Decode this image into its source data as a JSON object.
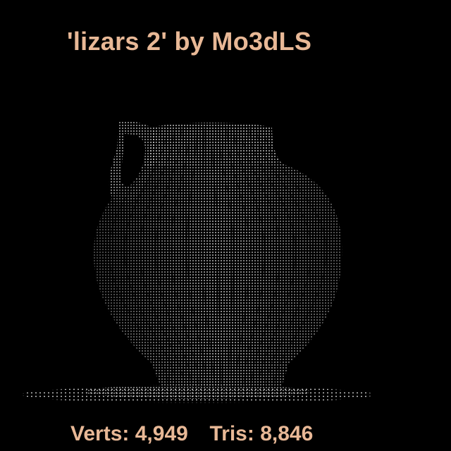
{
  "title": "'lizars 2' by Mo3dLS",
  "model_icon": "vase-point-cloud",
  "stats": {
    "verts_label": "Verts:",
    "verts_value": "4,949",
    "tris_label": "Tris:",
    "tris_value": "8,846"
  },
  "colors": {
    "background": "#000000",
    "text": "#e8b896",
    "points": "#f2f2f2"
  }
}
